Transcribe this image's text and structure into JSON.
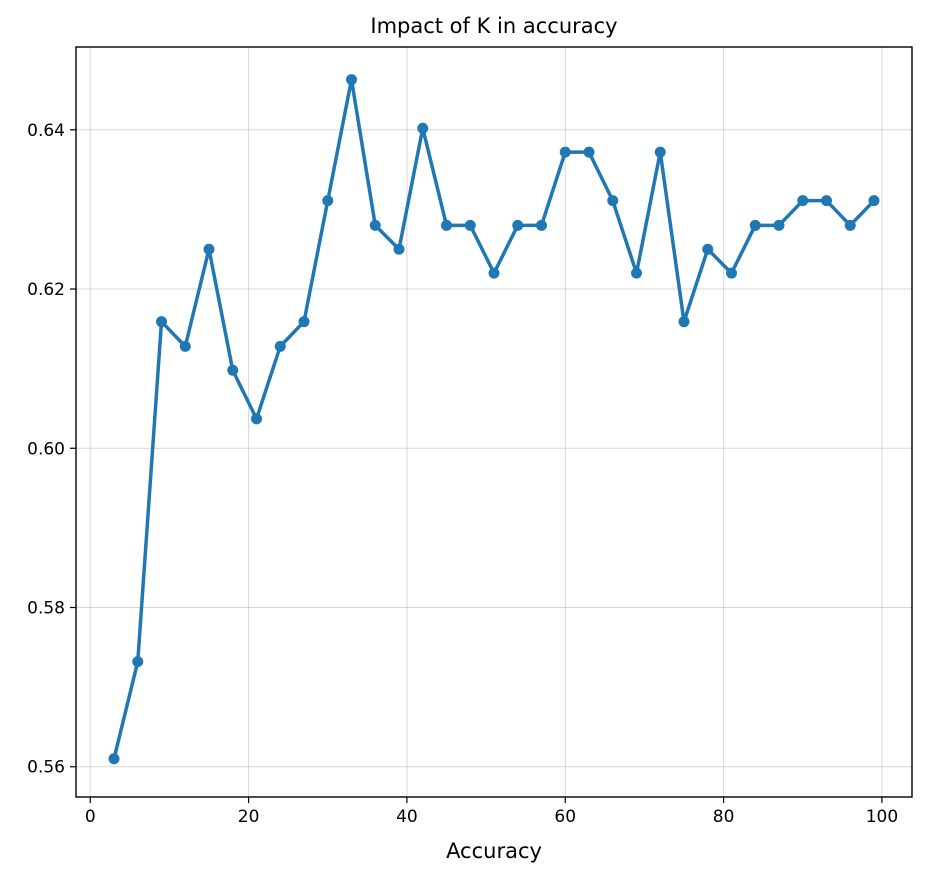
{
  "chart_data": {
    "type": "line",
    "title": "Impact of K in accuracy",
    "xlabel": "Accuracy",
    "ylabel": "",
    "xlim": [
      -1.8,
      103.8
    ],
    "ylim": [
      0.5562,
      0.6504
    ],
    "xticks": [
      0,
      20,
      40,
      60,
      80,
      100
    ],
    "yticks": [
      0.56,
      0.58,
      0.6,
      0.62,
      0.64
    ],
    "ytick_labels": [
      "0.56",
      "0.58",
      "0.60",
      "0.62",
      "0.64"
    ],
    "xtick_labels": [
      "0",
      "20",
      "40",
      "60",
      "80",
      "100"
    ],
    "grid": true,
    "color": "#1f77b4",
    "series": [
      {
        "x": [
          3,
          6,
          9,
          12,
          15,
          18,
          21,
          24,
          27,
          30,
          33,
          36,
          39,
          42,
          45,
          48,
          51,
          54,
          57,
          60,
          63,
          66,
          69,
          72,
          75,
          78,
          81,
          84,
          87,
          90,
          93,
          96,
          99
        ],
        "y": [
          0.561,
          0.5732,
          0.6159,
          0.6128,
          0.625,
          0.6098,
          0.6037,
          0.6128,
          0.6159,
          0.6311,
          0.6463,
          0.628,
          0.625,
          0.6402,
          0.628,
          0.628,
          0.622,
          0.628,
          0.628,
          0.6372,
          0.6372,
          0.6311,
          0.622,
          0.6372,
          0.6159,
          0.625,
          0.622,
          0.628,
          0.628,
          0.6311,
          0.6311,
          0.628,
          0.6311
        ]
      }
    ]
  }
}
